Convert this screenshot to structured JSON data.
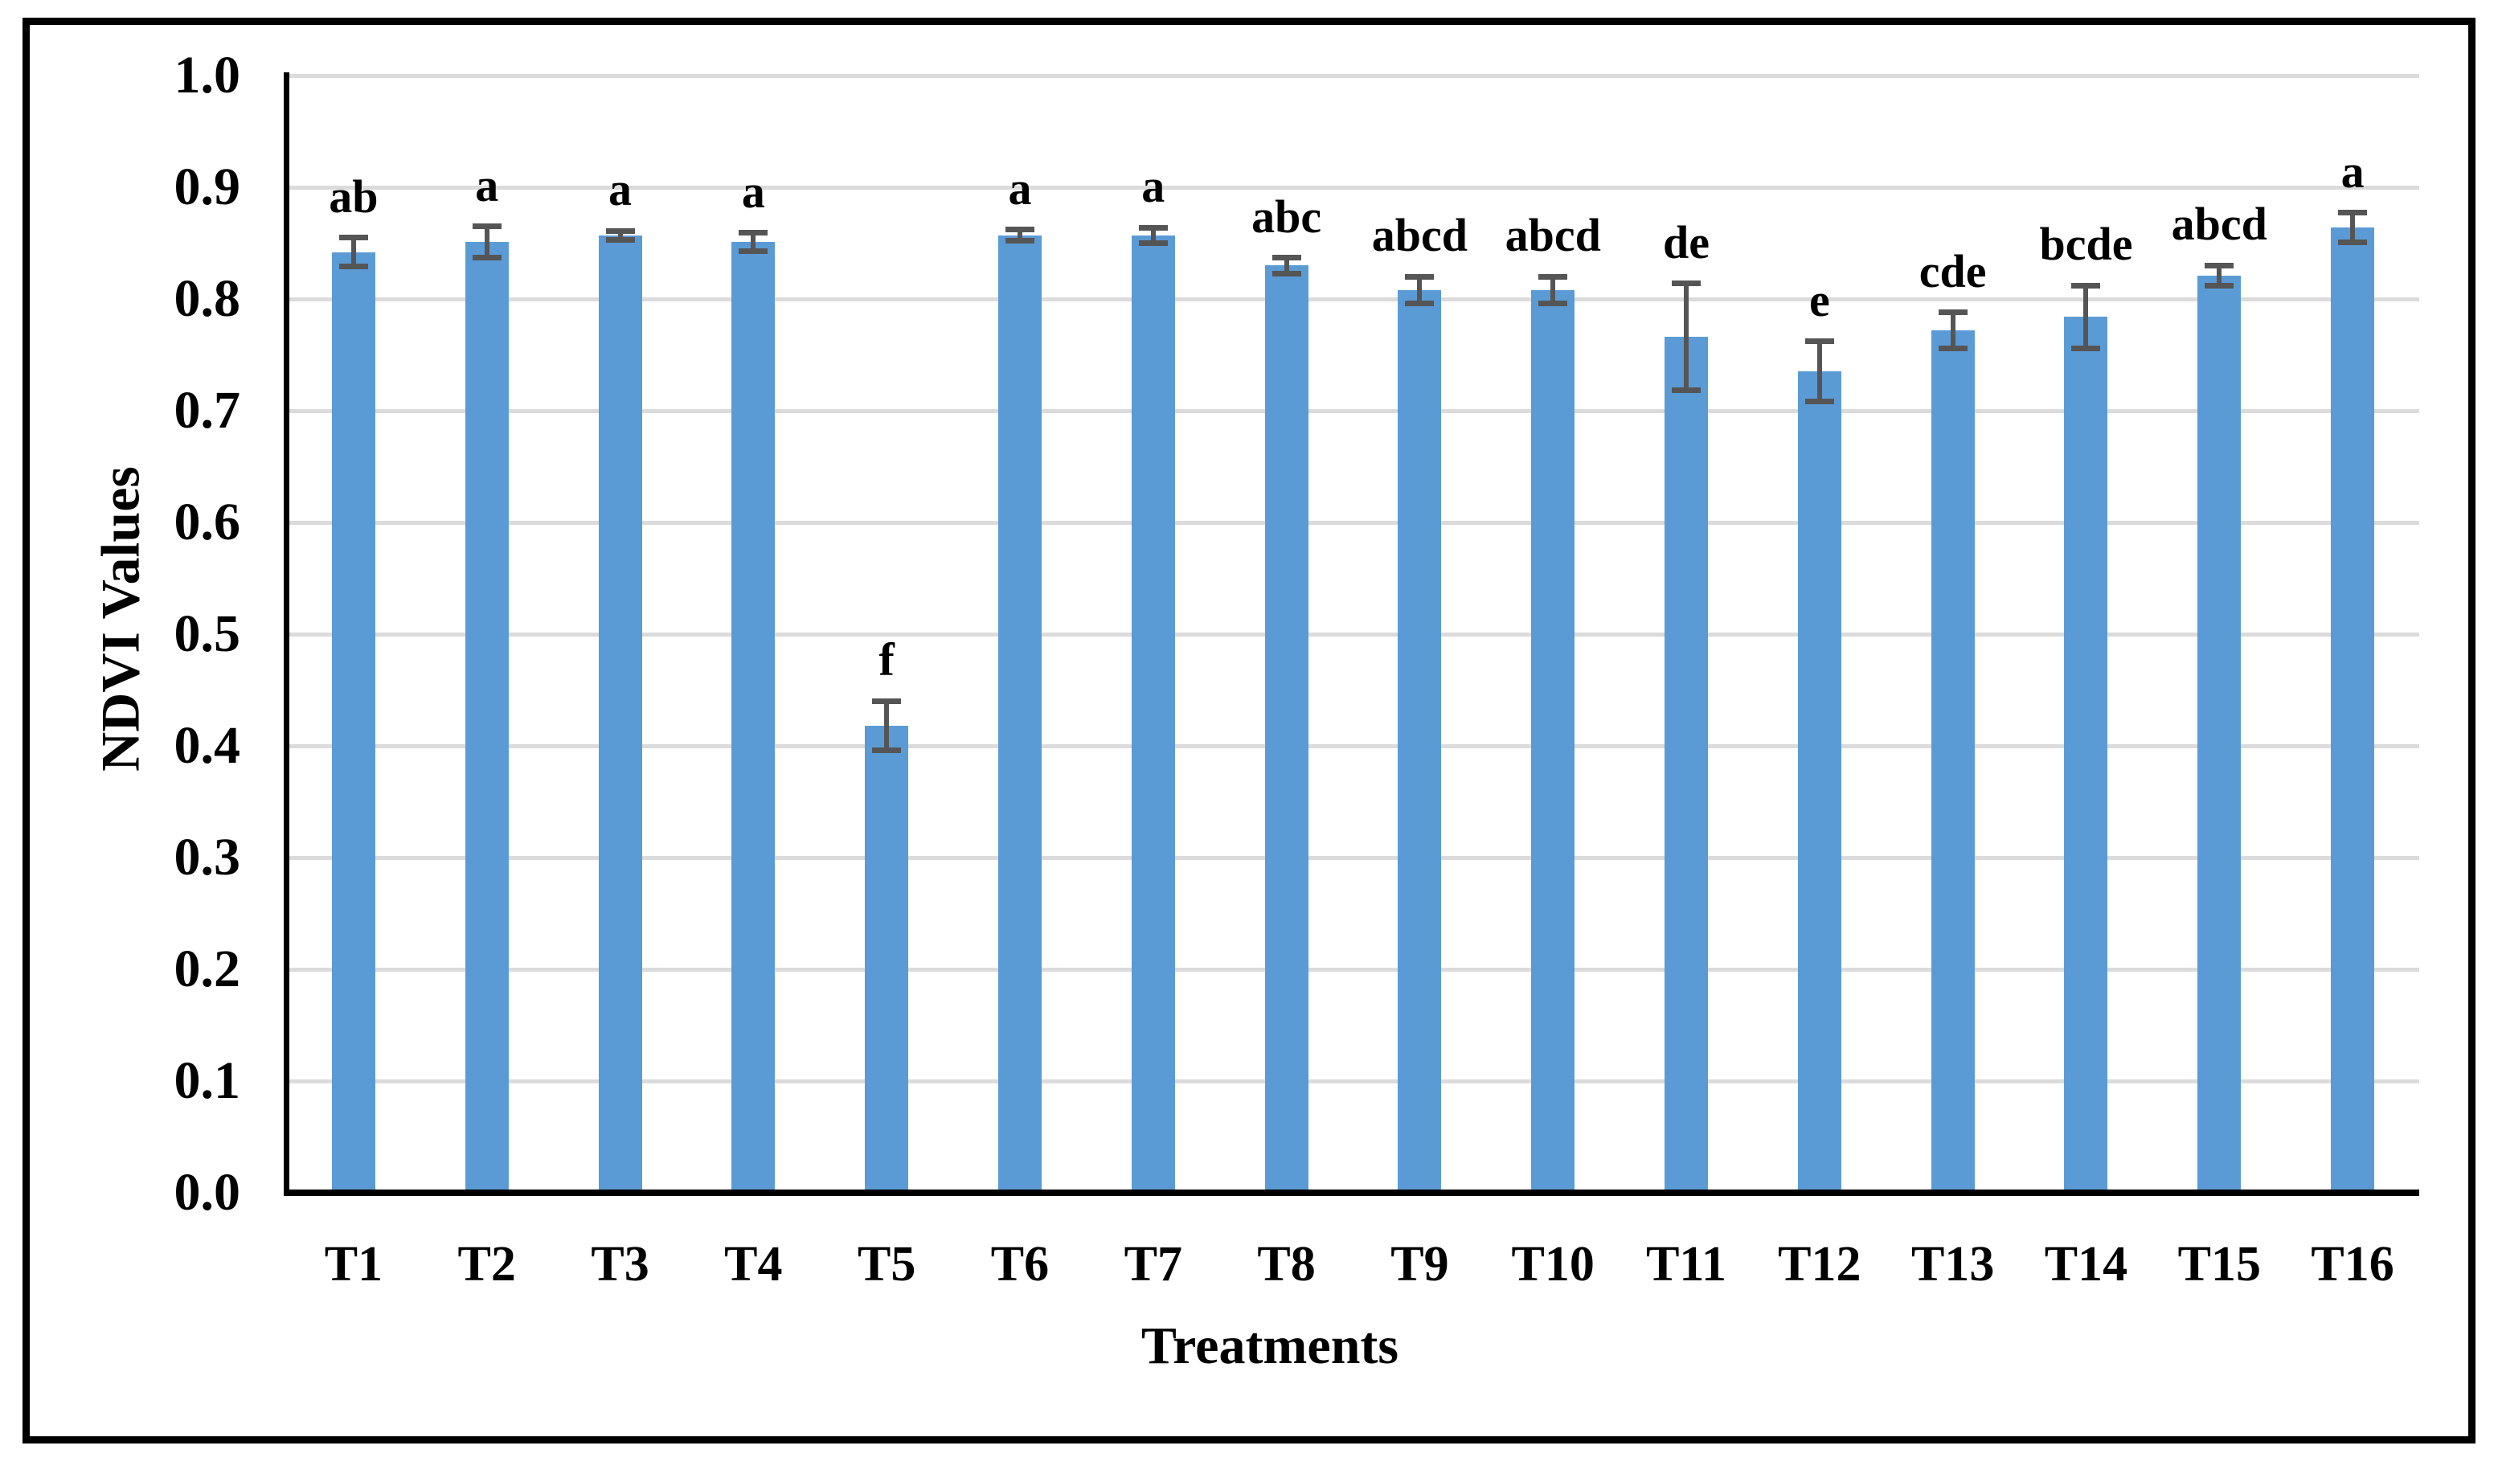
{
  "figure": {
    "background": "#ffffff",
    "border_color": "#000000"
  },
  "chart_data": {
    "type": "bar",
    "title": "",
    "xlabel": "Treatments",
    "ylabel": "NDVI Values",
    "ylim": [
      0.0,
      1.0
    ],
    "ytick_step": 0.1,
    "ytick_decimals": 1,
    "grid": "horizontal",
    "legend_position": "none",
    "categories": [
      "T1",
      "T2",
      "T3",
      "T4",
      "T5",
      "T6",
      "T7",
      "T8",
      "T9",
      "T10",
      "T11",
      "T12",
      "T13",
      "T14",
      "T15",
      "T16"
    ],
    "series": [
      {
        "name": "NDVI",
        "values": [
          0.842,
          0.851,
          0.857,
          0.851,
          0.418,
          0.857,
          0.857,
          0.83,
          0.808,
          0.808,
          0.766,
          0.735,
          0.772,
          0.784,
          0.821,
          0.864
        ],
        "error_bars": [
          0.013,
          0.014,
          0.004,
          0.008,
          0.022,
          0.005,
          0.007,
          0.007,
          0.012,
          0.012,
          0.048,
          0.027,
          0.016,
          0.028,
          0.009,
          0.013
        ],
        "significance_letters": [
          "ab",
          "a",
          "a",
          "a",
          "f",
          "a",
          "a",
          "abc",
          "abcd",
          "abcd",
          "de",
          "e",
          "cde",
          "bcde",
          "abcd",
          "a"
        ]
      }
    ],
    "colors": {
      "bar": "#5b9bd5",
      "error_bar": "#555555",
      "gridline": "#dbdbdb",
      "axis": "#000000",
      "text": "#000000"
    }
  }
}
